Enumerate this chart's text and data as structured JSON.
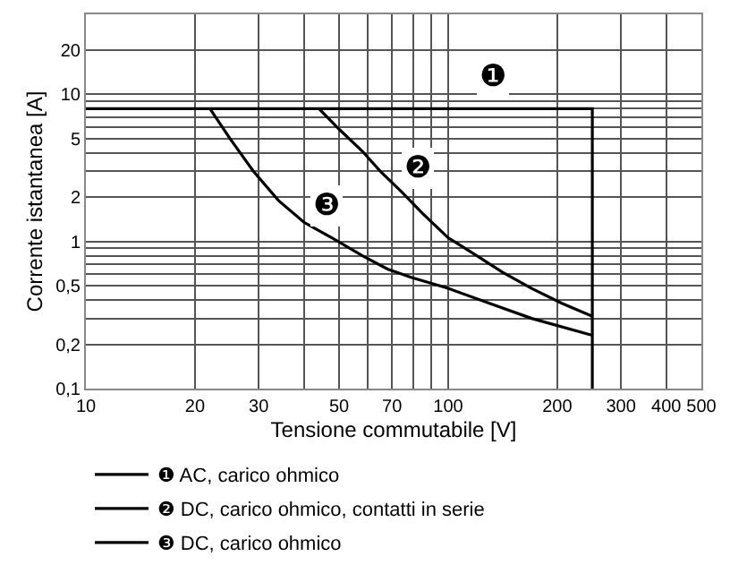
{
  "chart_data": {
    "type": "line",
    "xlabel": "Tensione commutabile [V]",
    "ylabel": "Corrente istantanea [A]",
    "log": "xy",
    "xlim": [
      10,
      500
    ],
    "ylim": [
      0.1,
      35
    ],
    "xticks": [
      10,
      20,
      30,
      {
        "value": 40,
        "label": null
      },
      50,
      {
        "value": 60,
        "label": null
      },
      70,
      {
        "value": 80,
        "label": null
      },
      {
        "value": 90,
        "label": null
      },
      100,
      200,
      300,
      400,
      500
    ],
    "yticks": [
      {
        "value": 0.1,
        "label": "0,1"
      },
      {
        "value": 0.2,
        "label": "0,2"
      },
      {
        "value": 0.3,
        "label": null
      },
      {
        "value": 0.4,
        "label": null
      },
      {
        "value": 0.5,
        "label": "0,5"
      },
      {
        "value": 0.6,
        "label": null
      },
      {
        "value": 0.7,
        "label": null
      },
      {
        "value": 0.8,
        "label": null
      },
      {
        "value": 0.9,
        "label": null
      },
      1,
      2,
      {
        "value": 3,
        "label": null
      },
      {
        "value": 4,
        "label": null
      },
      5,
      {
        "value": 6,
        "label": null
      },
      {
        "value": 7,
        "label": null
      },
      {
        "value": 8,
        "label": null
      },
      {
        "value": 9,
        "label": null
      },
      10,
      20
    ],
    "grid": true,
    "legend": "bottom",
    "marker": "none",
    "line_style": "solid",
    "series": [
      {
        "name": "❶ AC, carico ohmico",
        "color": "#000000",
        "x": [
          10,
          250,
          250
        ],
        "values": [
          8,
          8,
          0.1
        ]
      },
      {
        "name": "❷ DC, carico ohmico, contatti in serie",
        "color": "#000000",
        "x": [
          44,
          50,
          58,
          65,
          74,
          85,
          100,
          120,
          141,
          170,
          206,
          250
        ],
        "values": [
          8,
          5.8,
          4.1,
          3,
          2.2,
          1.55,
          1.06,
          0.8,
          0.62,
          0.48,
          0.38,
          0.31
        ]
      },
      {
        "name": "❸ DC, carico ohmico",
        "color": "#000000",
        "x": [
          22,
          25,
          29,
          34,
          40,
          48,
          58,
          68,
          79,
          100,
          130,
          170,
          250
        ],
        "values": [
          8,
          5,
          3,
          1.9,
          1.35,
          1.05,
          0.8,
          0.65,
          0.57,
          0.48,
          0.38,
          0.3,
          0.23
        ]
      }
    ],
    "annotations": [
      {
        "text": "❶",
        "x": 133,
        "y": 13
      },
      {
        "text": "❷",
        "x": 82,
        "y": 3.1
      },
      {
        "text": "❸",
        "x": 46,
        "y": 1.75
      }
    ]
  }
}
